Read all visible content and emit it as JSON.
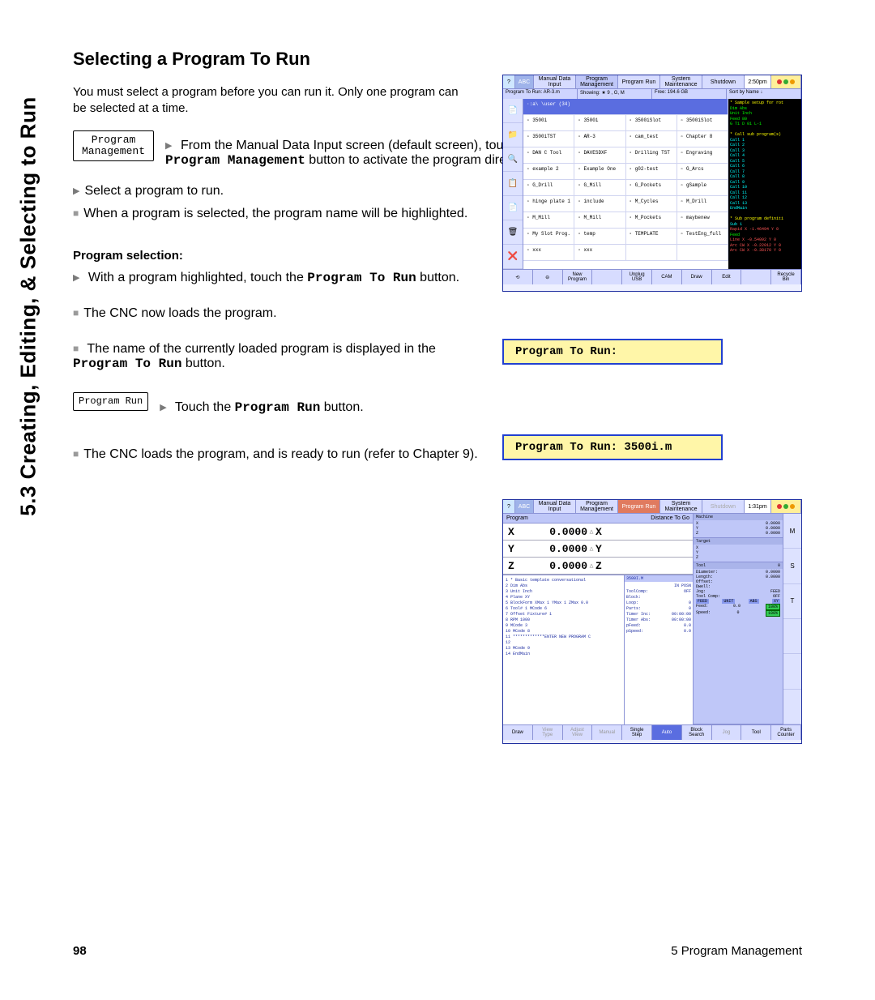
{
  "sidebar_title": "5.3 Creating, Editing, & Selecting to Run",
  "heading": "Selecting a Program To Run",
  "intro": "You must select a program before you can run it. Only one program can be selected at a time.",
  "pm_button": "Program\nManagement",
  "step1_a": "From the Manual Data Input screen (default screen), touch the ",
  "step1_b": "Program Management",
  "step1_c": " button to activate the program directory.",
  "step2": "Select a program to run.",
  "step3": "When a program is selected, the program name will be highlighted.",
  "subhead": "Program selection:",
  "ps1_a": "With a program highlighted, touch the ",
  "ps1_b": "Program To Run",
  "ps1_c": " button.",
  "ps2": "The CNC now loads the program.",
  "ps3_a": "The name of the currently loaded program is displayed in the ",
  "ps3_b": "Program To Run",
  "ps3_c": " button.",
  "pr_button": "Program Run",
  "pr_step_a": "Touch the ",
  "pr_step_b": "Program Run",
  "pr_step_c": " button.",
  "final": "The CNC loads the program, and is ready to run (refer to Chapter 9).",
  "yellow1": "Program To Run:",
  "yellow2": "Program To Run: 3500i.m",
  "footer_page": "98",
  "footer_chapter": "5 Program Management",
  "fig1": {
    "tabs": [
      "?",
      "ABC",
      "Manual Data\nInput",
      "Program\nManagement",
      "Program Run",
      "System\nMaintenance",
      "Shutdown",
      "2:50pm"
    ],
    "active_tab": 3,
    "status": [
      "Program To Run: AR-3.m",
      "Showing: ★ 9 , G, M",
      "Free: 194.6 GB",
      "Sort by  Name ↓"
    ],
    "path": "·:a\\ \\user (34)",
    "icons": [
      "📄",
      "📁",
      "🔍",
      "📋",
      "📄",
      "🗑",
      "❌"
    ],
    "files": [
      "3500i",
      "3500i",
      "3500iSlot",
      "3500iSlot",
      "3500iTST",
      "AR-3",
      "cam_test",
      "Chapter 8",
      "DAN C Tool",
      "DAVESDXF",
      "Drilling TST",
      "Engraving",
      "example 2",
      "Example One",
      "g02-test",
      "G_Arcs",
      "G_Drill",
      "G_Mill",
      "G_Pockets",
      "gSample",
      "hinge plate 1",
      "include",
      "M_Cycles",
      "M_Drill",
      "M_Mill",
      "M_Mill",
      "M_Pockets",
      "maybenew",
      "My Slot Prog.",
      "temp",
      "TEMPLATE",
      "TestEng_full",
      "xxx",
      "xxx",
      "",
      ""
    ],
    "code_lines": [
      "* Sample setup for rot",
      "Dim Abs",
      "Unit Inch",
      "Feed 80",
      "G T1 D 01 L-1",
      "",
      "* Call sub program(s)",
      "Call 1",
      "Call 2",
      "Call 3",
      "Call 4",
      "Call 5",
      "Call 6",
      "Call 7",
      "Call 8",
      "Call 9",
      "Call 10",
      "Call 11",
      "Call 12",
      "Call 13",
      "EndMain",
      "",
      "* Sub program definiti",
      "Sub 1",
      "Rapid   X -1.46494 Y 0",
      "Feed",
      "Line    X -0.54092 Y 0",
      "Arc CW  X -0.22012 Y 0",
      "Arc CW  X -0.38170 Y 0"
    ],
    "bottom": [
      "⟲",
      "⊖",
      "New\nProgram",
      "",
      "Unplug\nUSB",
      "CAM",
      "Draw",
      "Edit",
      "",
      "Recycle\nBin"
    ]
  },
  "fig2": {
    "tabs": [
      "?",
      "ABC",
      "Manual Data\nInput",
      "Program\nManagement",
      "Program Run",
      "System\nMaintenance",
      "Shutdown",
      "1:31pm"
    ],
    "active_tab": 4,
    "disabled_tab": 6,
    "prog_label": "Program",
    "dist_label": "Distance To Go",
    "dro": [
      {
        "axis": "X",
        "val": "0.0000",
        "ax2": "X"
      },
      {
        "axis": "Y",
        "val": "0.0000",
        "ax2": "Y"
      },
      {
        "axis": "Z",
        "val": "0.0000",
        "ax2": "Z"
      }
    ],
    "machine": {
      "title": "Machine",
      "rows": [
        [
          "X",
          "0.0000"
        ],
        [
          "Y",
          "0.0000"
        ],
        [
          "Z",
          "0.0000"
        ]
      ]
    },
    "target": {
      "title": "Target",
      "rows": [
        [
          "X",
          ""
        ],
        [
          "Y",
          ""
        ],
        [
          "Z",
          ""
        ]
      ]
    },
    "tool": {
      "title": "Tool",
      "id": "0",
      "rows": [
        [
          "Diameter:",
          "0.0000"
        ],
        [
          "Length:",
          "0.0000"
        ],
        [
          "Offset:",
          ""
        ],
        [
          "Dwell:",
          ""
        ],
        [
          "Jog:",
          "FEED"
        ],
        [
          "Tool Comp:",
          "OFF"
        ]
      ],
      "bar": [
        "FEED",
        "UNIT",
        "ABS",
        "XY"
      ],
      "feed": [
        "Feed:",
        "0.0",
        "100%"
      ],
      "speed": [
        "Speed:",
        "0",
        "100%"
      ]
    },
    "code": [
      "1 * Basic template conversational",
      "2 Dim Abs",
      "3 Unit Inch",
      "4 Plane XY",
      "5 BlockForm XMax 1 YMax 1 ZMax 0.0",
      "6 Tool# 1    MCode 6",
      "7 Offset    Fixture# 1",
      "8 RPM 1000",
      "9 MCode 3",
      "10 MCode 8",
      "11 *************ENTER NEW PROGRAM C",
      "12",
      "13 MCode 9",
      "14 EndMain"
    ],
    "info_title": "3500I.M",
    "info": [
      [
        "",
        "IN POSN"
      ],
      [
        "ToolComp:",
        "OFF"
      ],
      [
        "Block:",
        ""
      ],
      [
        "Loop:",
        "0"
      ],
      [
        "Parts:",
        "0"
      ],
      [
        "Timer Inc:",
        "00:00:00"
      ],
      [
        "Timer Abs:",
        "00:00:00"
      ],
      [
        "pFeed:",
        "0.0"
      ],
      [
        "pSpeed:",
        "0.0"
      ]
    ],
    "right_icons": [
      "M",
      "S",
      "T",
      "",
      "",
      ""
    ],
    "right_badges": [
      "Custom\nCycles",
      "",
      "",
      "M1",
      "OFF",
      "Blk Skip",
      "OFF"
    ],
    "bottom": [
      "Draw",
      "View\nType",
      "Adjust\nView",
      "Manual",
      "Single\nStep",
      "Auto",
      "Block\nSearch",
      "Jog",
      "Tool",
      "Parts\nCounter"
    ],
    "bottom_active": 5,
    "bottom_disabled": [
      1,
      2,
      3,
      7
    ]
  }
}
